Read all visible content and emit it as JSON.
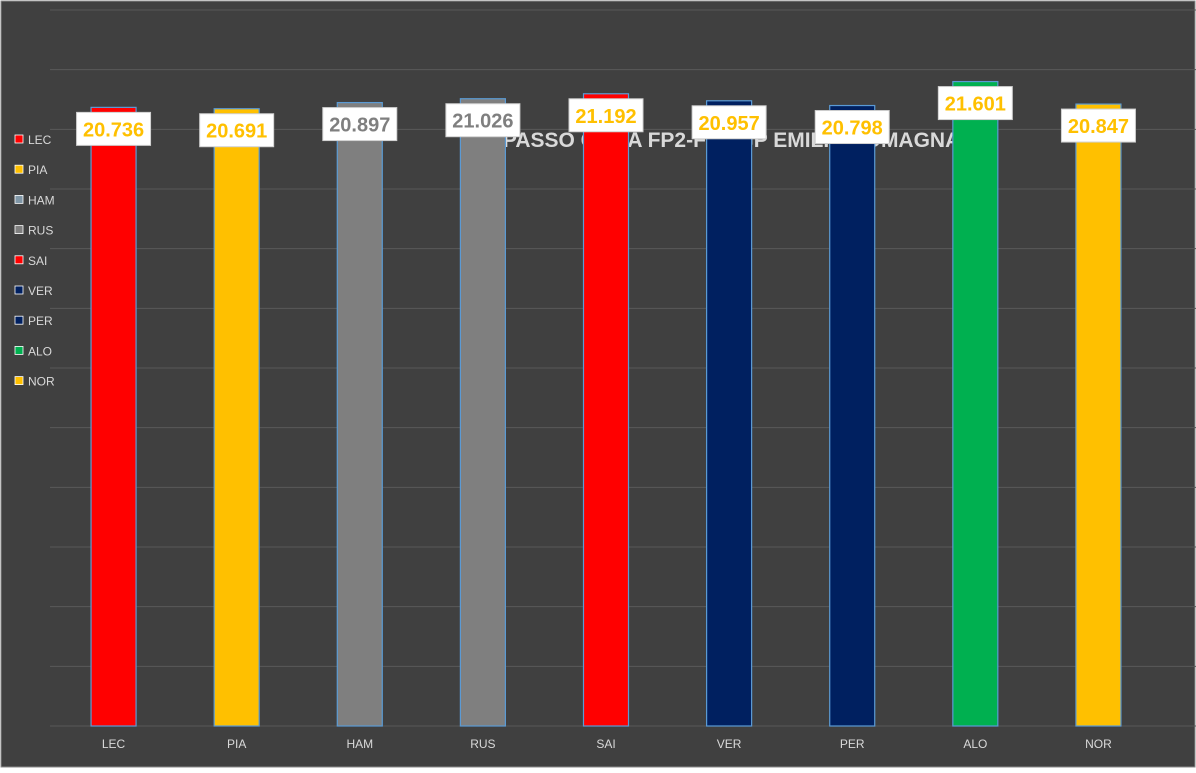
{
  "chart_data": {
    "type": "bar",
    "title": "SIM PASSO GARA FP2-FP3 GP EMILIA ROMAGNA",
    "xlabel": "",
    "ylabel": "",
    "ylim": [
      0,
      24
    ],
    "grid": true,
    "legend_position": "left",
    "categories": [
      "LEC",
      "PIA",
      "HAM",
      "RUS",
      "SAI",
      "VER",
      "PER",
      "ALO",
      "NOR"
    ],
    "values": [
      20.736,
      20.691,
      20.897,
      21.026,
      21.192,
      20.957,
      20.798,
      21.601,
      20.847
    ],
    "data_labels": [
      "20.736",
      "20.691",
      "20.897",
      "21.026",
      "21.192",
      "20.957",
      "20.798",
      "21.601",
      "20.847"
    ],
    "bar_colors": [
      "#ff0000",
      "#ffc000",
      "#7f7f7f",
      "#7f7f7f",
      "#ff0000",
      "#002060",
      "#002060",
      "#00b050",
      "#ffc000"
    ],
    "label_text_colors": [
      "#ffc000",
      "#ffc000",
      "#7f7f7f",
      "#7f7f7f",
      "#ffc000",
      "#ffc000",
      "#ffc000",
      "#ffc000",
      "#ffc000"
    ],
    "legend": [
      {
        "label": "LEC",
        "color": "#ff0000"
      },
      {
        "label": "PIA",
        "color": "#ffc000"
      },
      {
        "label": "HAM",
        "color": "#7f96a6"
      },
      {
        "label": "RUS",
        "color": "#7f7f7f"
      },
      {
        "label": "SAI",
        "color": "#ff0000"
      },
      {
        "label": "VER",
        "color": "#002060"
      },
      {
        "label": "PER",
        "color": "#002060"
      },
      {
        "label": "ALO",
        "color": "#00b050"
      },
      {
        "label": "NOR",
        "color": "#ffc000"
      }
    ],
    "colors": {
      "background": "#404040",
      "gridline": "#595959",
      "tick_label": "#d9d9d9",
      "title": "#d9d9d9",
      "bar_outline": "#5b9bd5"
    }
  }
}
